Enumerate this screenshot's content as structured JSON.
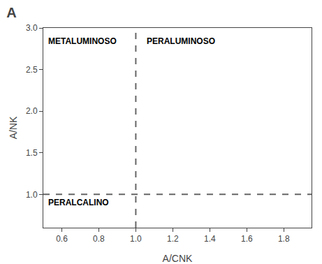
{
  "chart_data": {
    "type": "scatter",
    "title": "A",
    "xlabel": "A/CNK",
    "ylabel": "A/NK",
    "xlim": [
      0.5,
      1.95
    ],
    "ylim": [
      0.6,
      3.0
    ],
    "xticks": [
      0.6,
      0.8,
      {
        "value": 1.0,
        "label": "1.0"
      },
      1.2,
      1.4,
      1.6,
      1.8
    ],
    "yticks": [
      {
        "value": 1.0,
        "label": "1.0"
      },
      1.5,
      {
        "value": 2.0,
        "label": "2.0"
      },
      2.5,
      {
        "value": 3.0,
        "label": "3.0"
      }
    ],
    "grid": false,
    "lines": [
      {
        "axis": "x",
        "value": 1.0,
        "color": "#666666",
        "line_style": "dashed"
      },
      {
        "axis": "y",
        "value": 1.0,
        "color": "#666666",
        "line_style": "dashed"
      }
    ],
    "annotations": [
      {
        "text": "METALUMINOSO",
        "x": 0.52,
        "y": 2.92
      },
      {
        "text": "PERALUMINOSO",
        "x": 1.05,
        "y": 2.92
      },
      {
        "text": "PERALCALINO",
        "x": 0.52,
        "y": 0.98
      }
    ]
  }
}
